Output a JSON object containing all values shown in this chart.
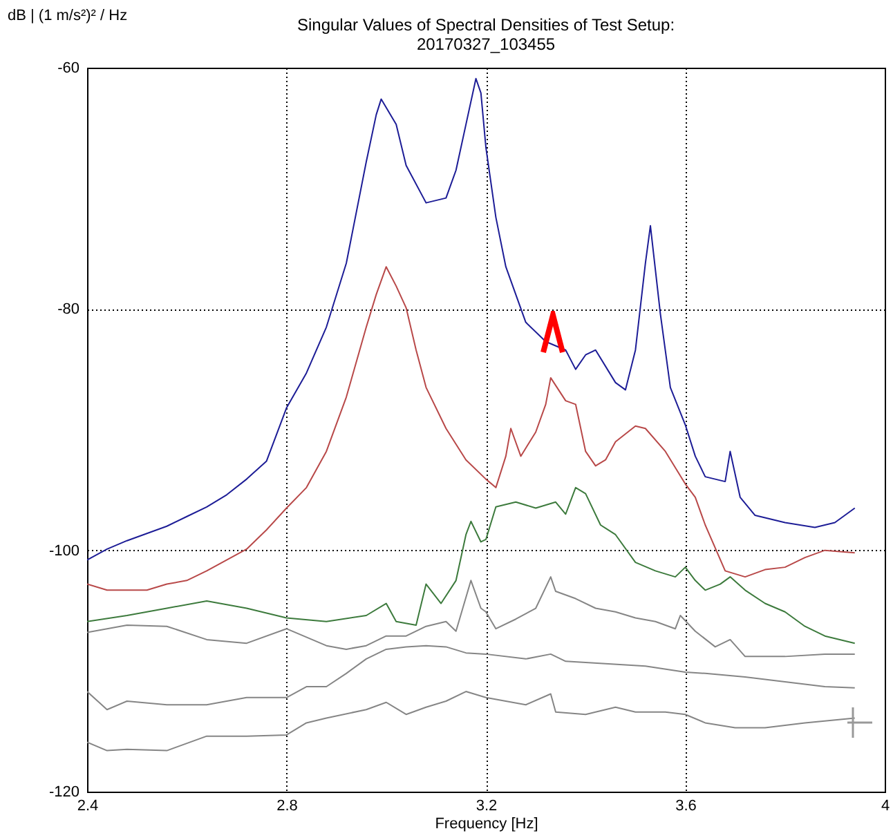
{
  "chart_data": {
    "type": "line",
    "title": "Singular Values of Spectral Densities of Test Setup:",
    "subtitle": "20170327_103455",
    "xlabel": "Frequency [Hz]",
    "ylabel": "dB | (1 m/s²)² / Hz",
    "xlim": [
      2.4,
      4
    ],
    "xticks": [
      2.4,
      2.8,
      3.2,
      3.6,
      4
    ],
    "ylim": [
      -120,
      -60
    ],
    "yticks": [
      -120,
      -100,
      -80,
      -60
    ],
    "grid": true,
    "series": [
      {
        "color": "#1c1c96",
        "x": [
          2.4,
          2.44,
          2.48,
          2.52,
          2.56,
          2.6,
          2.64,
          2.68,
          2.72,
          2.76,
          2.8,
          2.84,
          2.88,
          2.92,
          2.96,
          2.98,
          2.99,
          3.02,
          3.04,
          3.08,
          3.12,
          3.14,
          3.16,
          3.18,
          3.19,
          3.2,
          3.22,
          3.24,
          3.28,
          3.32,
          3.36,
          3.38,
          3.4,
          3.42,
          3.46,
          3.48,
          3.5,
          3.52,
          3.53,
          3.55,
          3.57,
          3.6,
          3.62,
          3.64,
          3.68,
          3.69,
          3.71,
          3.74,
          3.8,
          3.86,
          3.9,
          3.94
        ],
        "values": [
          -100.8,
          -99.9,
          -99.2,
          -98.6,
          -98.0,
          -97.2,
          -96.4,
          -95.4,
          -94.1,
          -92.6,
          -88.2,
          -85.3,
          -81.5,
          -76.2,
          -67.8,
          -63.9,
          -62.6,
          -64.7,
          -68.1,
          -71.2,
          -70.8,
          -68.5,
          -64.7,
          -60.9,
          -62.1,
          -66.6,
          -72.4,
          -76.5,
          -81.1,
          -82.7,
          -83.4,
          -85.0,
          -83.8,
          -83.4,
          -86.1,
          -86.7,
          -83.4,
          -76.2,
          -73.1,
          -80.4,
          -86.5,
          -89.6,
          -92.2,
          -93.9,
          -94.3,
          -91.8,
          -95.6,
          -97.1,
          -97.7,
          -98.1,
          -97.7,
          -96.5
        ]
      },
      {
        "color": "#b84848",
        "x": [
          2.4,
          2.44,
          2.48,
          2.52,
          2.56,
          2.6,
          2.64,
          2.68,
          2.72,
          2.76,
          2.8,
          2.84,
          2.88,
          2.92,
          2.96,
          2.98,
          3.0,
          3.02,
          3.04,
          3.06,
          3.08,
          3.12,
          3.16,
          3.2,
          3.22,
          3.24,
          3.25,
          3.27,
          3.3,
          3.32,
          3.33,
          3.36,
          3.38,
          3.4,
          3.42,
          3.44,
          3.46,
          3.5,
          3.52,
          3.56,
          3.6,
          3.62,
          3.64,
          3.68,
          3.72,
          3.76,
          3.8,
          3.84,
          3.88,
          3.94
        ],
        "values": [
          -102.8,
          -103.3,
          -103.3,
          -103.3,
          -102.8,
          -102.5,
          -101.7,
          -100.8,
          -99.9,
          -98.3,
          -96.5,
          -94.8,
          -91.8,
          -87.3,
          -81.5,
          -78.8,
          -76.5,
          -78.1,
          -79.9,
          -83.4,
          -86.5,
          -89.9,
          -92.5,
          -94.1,
          -94.8,
          -92.2,
          -89.9,
          -92.2,
          -90.2,
          -87.9,
          -85.7,
          -87.6,
          -87.9,
          -91.8,
          -93.0,
          -92.5,
          -91.0,
          -89.7,
          -89.9,
          -91.8,
          -94.5,
          -95.6,
          -97.9,
          -101.7,
          -102.2,
          -101.6,
          -101.4,
          -100.6,
          -100.0,
          -100.2
        ]
      },
      {
        "color": "#3c7a3c",
        "x": [
          2.4,
          2.48,
          2.56,
          2.64,
          2.72,
          2.8,
          2.88,
          2.96,
          3.0,
          3.02,
          3.06,
          3.08,
          3.11,
          3.14,
          3.16,
          3.17,
          3.19,
          3.2,
          3.22,
          3.26,
          3.3,
          3.34,
          3.36,
          3.38,
          3.4,
          3.43,
          3.46,
          3.5,
          3.54,
          3.58,
          3.6,
          3.62,
          3.64,
          3.67,
          3.69,
          3.72,
          3.76,
          3.8,
          3.84,
          3.88,
          3.94
        ],
        "values": [
          -105.9,
          -105.4,
          -104.8,
          -104.2,
          -104.8,
          -105.6,
          -105.9,
          -105.4,
          -104.4,
          -105.9,
          -106.2,
          -102.8,
          -104.4,
          -102.5,
          -98.7,
          -97.6,
          -99.3,
          -99.1,
          -96.4,
          -96.0,
          -96.5,
          -96.0,
          -97.0,
          -94.8,
          -95.3,
          -97.9,
          -98.7,
          -101.0,
          -101.7,
          -102.2,
          -101.4,
          -102.5,
          -103.3,
          -102.8,
          -102.2,
          -103.3,
          -104.4,
          -105.1,
          -106.3,
          -107.1,
          -107.7
        ]
      },
      {
        "color": "#858585",
        "x": [
          2.4,
          2.48,
          2.56,
          2.64,
          2.72,
          2.8,
          2.88,
          2.92,
          2.96,
          3.0,
          3.04,
          3.08,
          3.12,
          3.14,
          3.17,
          3.19,
          3.2,
          3.22,
          3.26,
          3.3,
          3.33,
          3.34,
          3.38,
          3.42,
          3.46,
          3.5,
          3.54,
          3.58,
          3.59,
          3.62,
          3.66,
          3.69,
          3.72,
          3.8,
          3.88,
          3.94
        ],
        "values": [
          -106.8,
          -106.2,
          -106.3,
          -107.4,
          -107.7,
          -106.5,
          -107.9,
          -108.2,
          -107.9,
          -107.1,
          -107.1,
          -106.3,
          -105.9,
          -106.7,
          -102.5,
          -104.8,
          -105.1,
          -106.5,
          -105.7,
          -104.8,
          -102.2,
          -103.4,
          -104.0,
          -104.8,
          -105.1,
          -105.6,
          -105.9,
          -106.5,
          -105.4,
          -106.7,
          -108.0,
          -107.4,
          -108.8,
          -108.8,
          -108.6,
          -108.6
        ]
      },
      {
        "color": "#858585",
        "x": [
          2.4,
          2.44,
          2.48,
          2.56,
          2.64,
          2.72,
          2.8,
          2.84,
          2.88,
          2.92,
          2.96,
          3.0,
          3.04,
          3.08,
          3.12,
          3.16,
          3.2,
          3.28,
          3.33,
          3.36,
          3.44,
          3.52,
          3.6,
          3.64,
          3.72,
          3.8,
          3.88,
          3.94
        ],
        "values": [
          -111.7,
          -113.2,
          -112.5,
          -112.8,
          -112.8,
          -112.2,
          -112.2,
          -111.3,
          -111.3,
          -110.2,
          -109.0,
          -108.2,
          -108.0,
          -107.9,
          -108.0,
          -108.5,
          -108.6,
          -109.0,
          -108.6,
          -109.2,
          -109.4,
          -109.6,
          -110.1,
          -110.2,
          -110.5,
          -110.9,
          -111.3,
          -111.4
        ]
      },
      {
        "color": "#858585",
        "x": [
          2.4,
          2.44,
          2.48,
          2.56,
          2.64,
          2.72,
          2.8,
          2.84,
          2.88,
          2.96,
          3.0,
          3.04,
          3.08,
          3.12,
          3.16,
          3.2,
          3.24,
          3.28,
          3.33,
          3.34,
          3.4,
          3.46,
          3.5,
          3.56,
          3.6,
          3.64,
          3.7,
          3.76,
          3.84,
          3.94
        ],
        "values": [
          -115.9,
          -116.6,
          -116.5,
          -116.6,
          -115.4,
          -115.4,
          -115.3,
          -114.3,
          -113.9,
          -113.2,
          -112.6,
          -113.6,
          -113.0,
          -112.5,
          -111.7,
          -112.2,
          -112.5,
          -112.8,
          -111.9,
          -113.4,
          -113.6,
          -113.0,
          -113.4,
          -113.4,
          -113.6,
          -114.3,
          -114.7,
          -114.7,
          -114.3,
          -113.9
        ]
      }
    ]
  }
}
